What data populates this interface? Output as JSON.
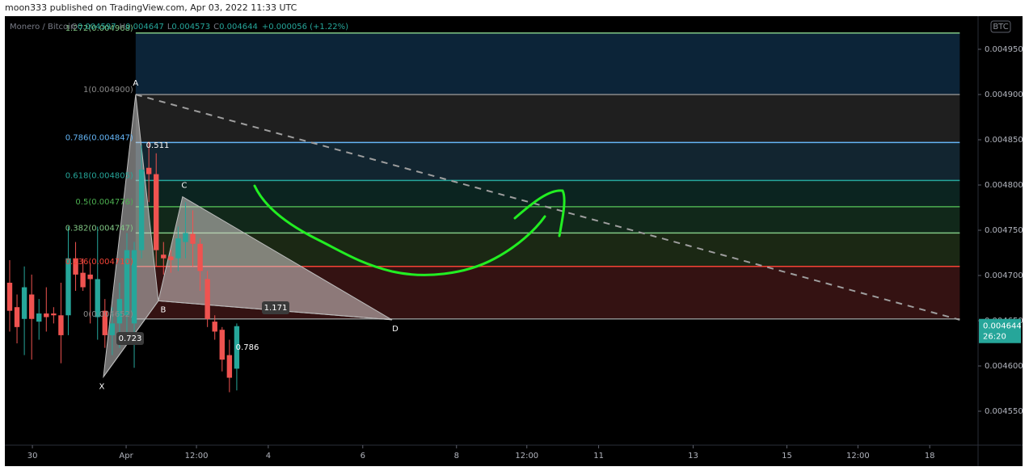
{
  "chart_data": {
    "type": "candlestick",
    "title": "moon333 published on TradingView.com, Apr 03, 2022 11:33 UTC",
    "symbol": "Monero / Bitcoin",
    "ohlc_letters": [
      "O",
      "H",
      "L",
      "C"
    ],
    "change": "+0.000056 (+1.22%)",
    "currency": "BTC",
    "countdown": "26:20",
    "up_color": "#26a69a",
    "down_color": "#ef5350",
    "xlim": [
      -0.66,
      132.2
    ],
    "xticks": [
      {
        "value": 3.1,
        "label": "30"
      },
      {
        "value": 15.9,
        "label": "Apr"
      },
      {
        "value": 25.5,
        "label": "12:00"
      },
      {
        "value": 35.3,
        "label": "4"
      },
      {
        "value": 48.2,
        "label": "6"
      },
      {
        "value": 61.0,
        "label": "8"
      },
      {
        "value": 70.6,
        "label": "12:00"
      },
      {
        "value": 80.4,
        "label": "11"
      },
      {
        "value": 93.3,
        "label": "13"
      },
      {
        "value": 106.1,
        "label": "15"
      },
      {
        "value": 115.8,
        "label": "12:00"
      },
      {
        "value": 125.6,
        "label": "18"
      }
    ],
    "ylim": [
      0.0045125,
      0.0049866
    ],
    "yticks": [
      {
        "value": 0.00455,
        "label": "0.004550"
      },
      {
        "value": 0.0046,
        "label": "0.004600"
      },
      {
        "value": 0.00465,
        "label": "0.004650"
      },
      {
        "value": 0.0047,
        "label": "0.004700"
      },
      {
        "value": 0.00475,
        "label": "0.004750"
      },
      {
        "value": 0.0048,
        "label": "0.004800"
      },
      {
        "value": 0.00485,
        "label": "0.004850"
      },
      {
        "value": 0.0049,
        "label": "0.004900"
      },
      {
        "value": 0.00495,
        "label": "0.004950"
      }
    ],
    "candles": {
      "x": [
        0,
        1,
        2,
        3,
        4,
        5,
        6,
        7,
        8,
        9,
        10,
        11,
        12,
        13,
        14,
        15,
        16,
        17,
        18,
        19,
        20,
        21,
        22,
        23,
        24,
        25,
        26,
        27,
        28,
        29,
        30,
        31
      ],
      "open": [
        0.004692,
        0.004665,
        0.004652,
        0.004679,
        0.004649,
        0.004658,
        0.004658,
        0.004656,
        0.004656,
        0.004719,
        0.004703,
        0.004701,
        0.004654,
        0.004661,
        0.004634,
        0.004647,
        0.004656,
        0.004647,
        0.004728,
        0.004819,
        0.004812,
        0.004723,
        0.004721,
        0.004719,
        0.004737,
        0.004746,
        0.004735,
        0.004696,
        0.004649,
        0.00464,
        0.004612,
        0.004597
      ],
      "high": [
        0.004717,
        0.004679,
        0.00471,
        0.004701,
        0.004674,
        0.004687,
        0.004665,
        0.004692,
        0.004754,
        0.004737,
        0.004719,
        0.004714,
        0.004754,
        0.004674,
        0.004665,
        0.004692,
        0.004747,
        0.004737,
        0.004844,
        0.004848,
        0.004835,
        0.004737,
        0.004728,
        0.004754,
        0.004781,
        0.004772,
        0.004741,
        0.004705,
        0.004656,
        0.004643,
        0.004629,
        0.004647
      ],
      "low": [
        0.004638,
        0.004625,
        0.004612,
        0.004607,
        0.004629,
        0.004638,
        0.004647,
        0.004603,
        0.004634,
        0.004683,
        0.004683,
        0.004647,
        0.004629,
        0.00462,
        0.004612,
        0.00462,
        0.004625,
        0.004598,
        0.004719,
        0.004781,
        0.00471,
        0.004701,
        0.004703,
        0.004705,
        0.004719,
        0.00471,
        0.004683,
        0.004643,
        0.004629,
        0.004594,
        0.004571,
        0.004573
      ],
      "close": [
        0.004661,
        0.004643,
        0.004687,
        0.004652,
        0.004658,
        0.004654,
        0.004656,
        0.004634,
        0.004719,
        0.004701,
        0.004687,
        0.004696,
        0.004696,
        0.004634,
        0.004647,
        0.004674,
        0.004728,
        0.004728,
        0.004817,
        0.004812,
        0.004728,
        0.004719,
        0.004717,
        0.004741,
        0.004747,
        0.004735,
        0.004705,
        0.004652,
        0.004638,
        0.004607,
        0.004587,
        0.004644
      ]
    },
    "fib": {
      "x": [
        17.2,
        129.7
      ],
      "levels": [
        {
          "label": "1.272(0.004968)",
          "value": 0.004968,
          "color": "#81c784",
          "band_color": "#0c2438"
        },
        {
          "label": "1(0.004900)",
          "value": 0.0049,
          "color": "#8a8a8a",
          "band_color": "#1f1f1f"
        },
        {
          "label": "0.786(0.004847)",
          "value": 0.004847,
          "color": "#64b5f6",
          "band_color": "#122530"
        },
        {
          "label": "0.618(0.004805)",
          "value": 0.004805,
          "color": "#26a69a",
          "band_color": "#0b2420"
        },
        {
          "label": "0.5(0.004776)",
          "value": 0.004776,
          "color": "#4caf50",
          "band_color": "#11281a"
        },
        {
          "label": "0.382(0.004747)",
          "value": 0.004747,
          "color": "#81c784",
          "band_color": "#1b2814"
        },
        {
          "label": "0.236(0.004710)",
          "value": 0.00471,
          "color": "#f44336",
          "band_color": "#341212"
        },
        {
          "label": "0(0.004652)",
          "value": 0.004652,
          "color": "#8a8a8a"
        }
      ]
    },
    "pattern": {
      "points": [
        {
          "label": "X",
          "x": 12.8,
          "y": 0.004588
        },
        {
          "label": "A",
          "x": 17.2,
          "y": 0.0049
        },
        {
          "label": "B",
          "x": 20.3,
          "y": 0.004672
        },
        {
          "label": "C",
          "x": 23.6,
          "y": 0.004787
        },
        {
          "label": "D",
          "x": 52.2,
          "y": 0.004651
        }
      ],
      "ratios": [
        0.511,
        0.723,
        1.171,
        0.786
      ]
    },
    "trend_line": {
      "x": [
        17.2,
        129.7
      ],
      "y": [
        0.0049,
        0.004651
      ]
    }
  }
}
